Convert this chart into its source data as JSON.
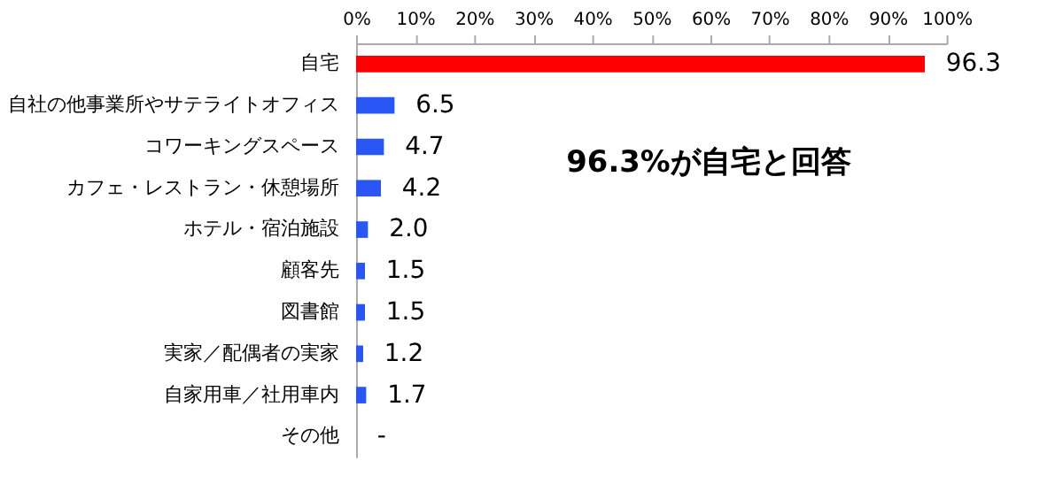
{
  "chart_data": {
    "type": "bar",
    "orientation": "horizontal",
    "categories": [
      "自宅",
      "自社の他事業所やサテライトオフィス",
      "コワーキングスペース",
      "カフェ・レストラン・休憩場所",
      "ホテル・宿泊施設",
      "顧客先",
      "図書館",
      "実家／配偶者の実家",
      "自家用車／社用車内",
      "その他"
    ],
    "values": [
      96.3,
      6.5,
      4.7,
      4.2,
      2.0,
      1.5,
      1.5,
      1.2,
      1.7,
      null
    ],
    "colors": [
      "#ff0000",
      "#2a56f5",
      "#2a56f5",
      "#2a56f5",
      "#2a56f5",
      "#2a56f5",
      "#2a56f5",
      "#2a56f5",
      "#2a56f5",
      "#2a56f5"
    ],
    "value_labels": [
      "96.3",
      "6.5",
      "4.7",
      "4.2",
      "2.0",
      "1.5",
      "1.5",
      "1.2",
      "1.7",
      "-"
    ],
    "xlim": [
      0,
      100
    ],
    "xticks": [
      {
        "value": 0,
        "label": "0%"
      },
      {
        "value": 10,
        "label": "10%"
      },
      {
        "value": 20,
        "label": "20%"
      },
      {
        "value": 30,
        "label": "30%"
      },
      {
        "value": 40,
        "label": "40%"
      },
      {
        "value": 50,
        "label": "50%"
      },
      {
        "value": 60,
        "label": "60%"
      },
      {
        "value": 70,
        "label": "70%"
      },
      {
        "value": 80,
        "label": "80%"
      },
      {
        "value": 90,
        "label": "90%"
      },
      {
        "value": 100,
        "label": "100%"
      }
    ],
    "annotations": [
      "96.3%が自宅と回答"
    ],
    "grid": false
  }
}
